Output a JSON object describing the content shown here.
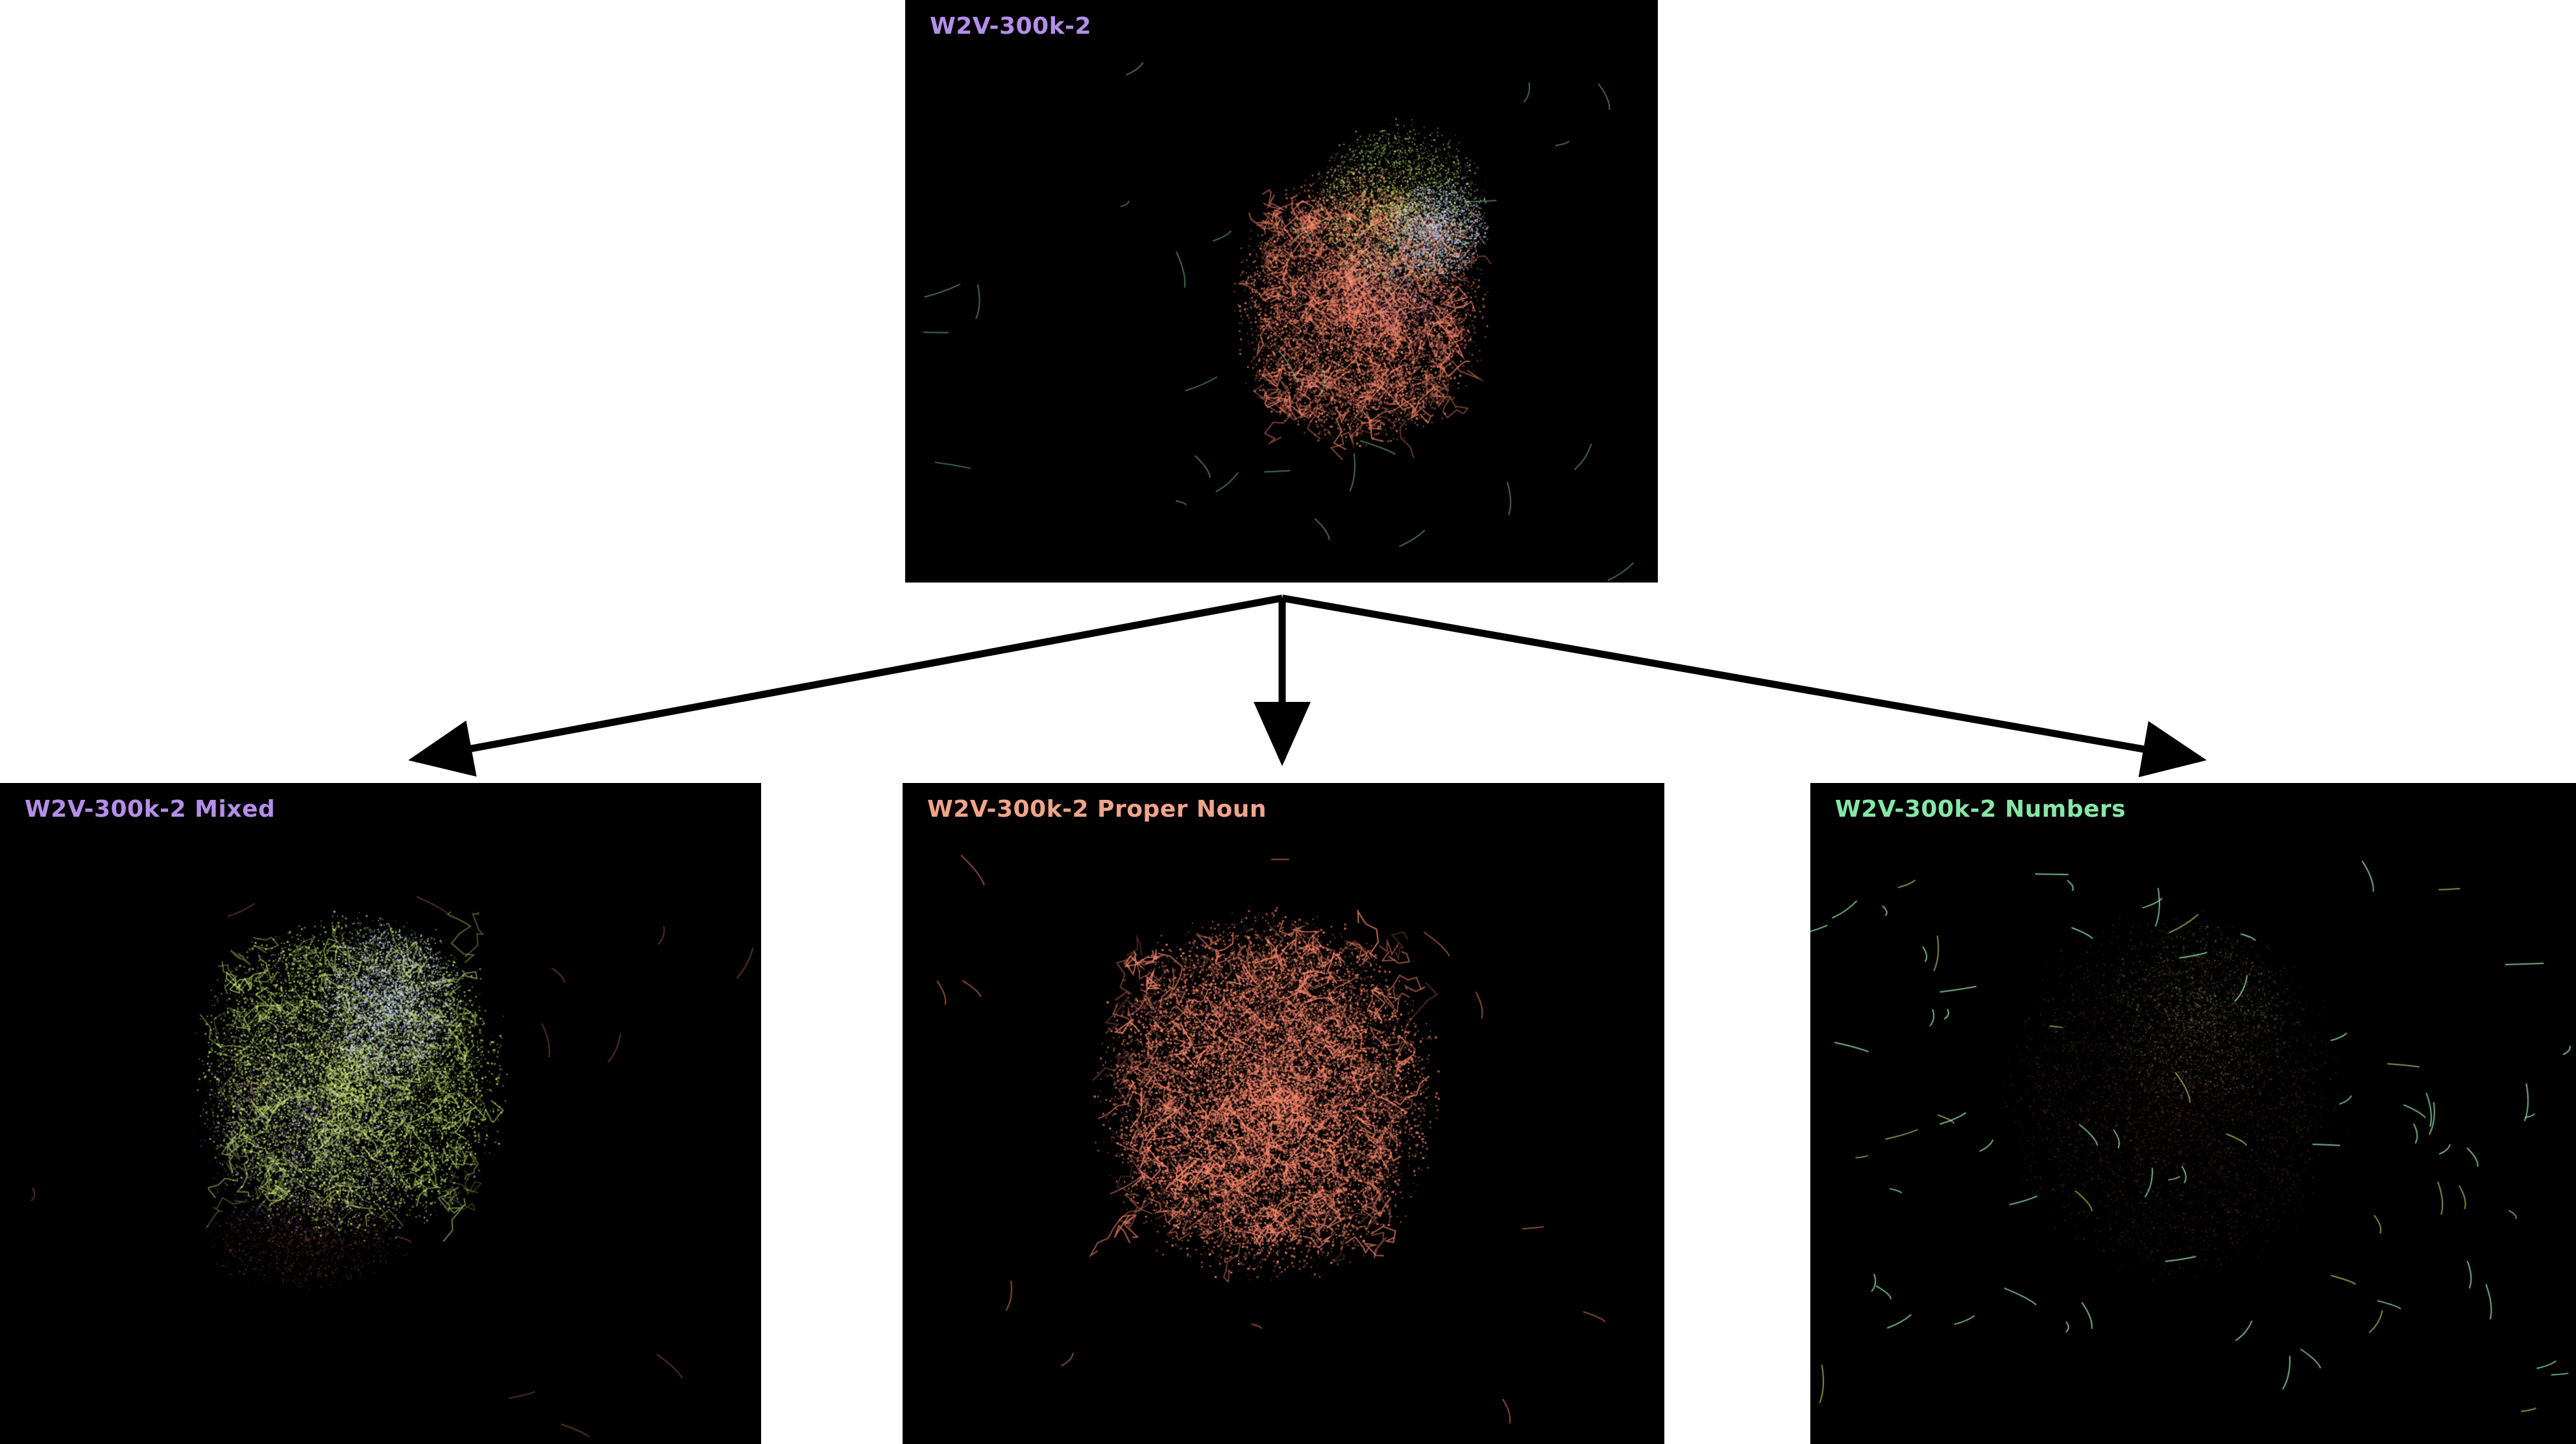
{
  "panels": {
    "top": {
      "title": "W2V-300k-2",
      "title_color": "#b48ee8"
    },
    "mixed": {
      "title": "W2V-300k-2 Mixed",
      "title_color": "#b48ee8"
    },
    "proper_noun": {
      "title": "W2V-300k-2 Proper Noun",
      "title_color": "#f0a48a"
    },
    "numbers": {
      "title": "W2V-300k-2 Numbers",
      "title_color": "#86e6a6"
    }
  },
  "palette": {
    "proper_noun": "#ff8a6e",
    "mixed": "#d8f27a",
    "mixed_alt": "#b8a0ff",
    "core": "#c8d8ff",
    "numbers": "#9cf0b4",
    "background": "#000000",
    "arrow": "#000000"
  }
}
